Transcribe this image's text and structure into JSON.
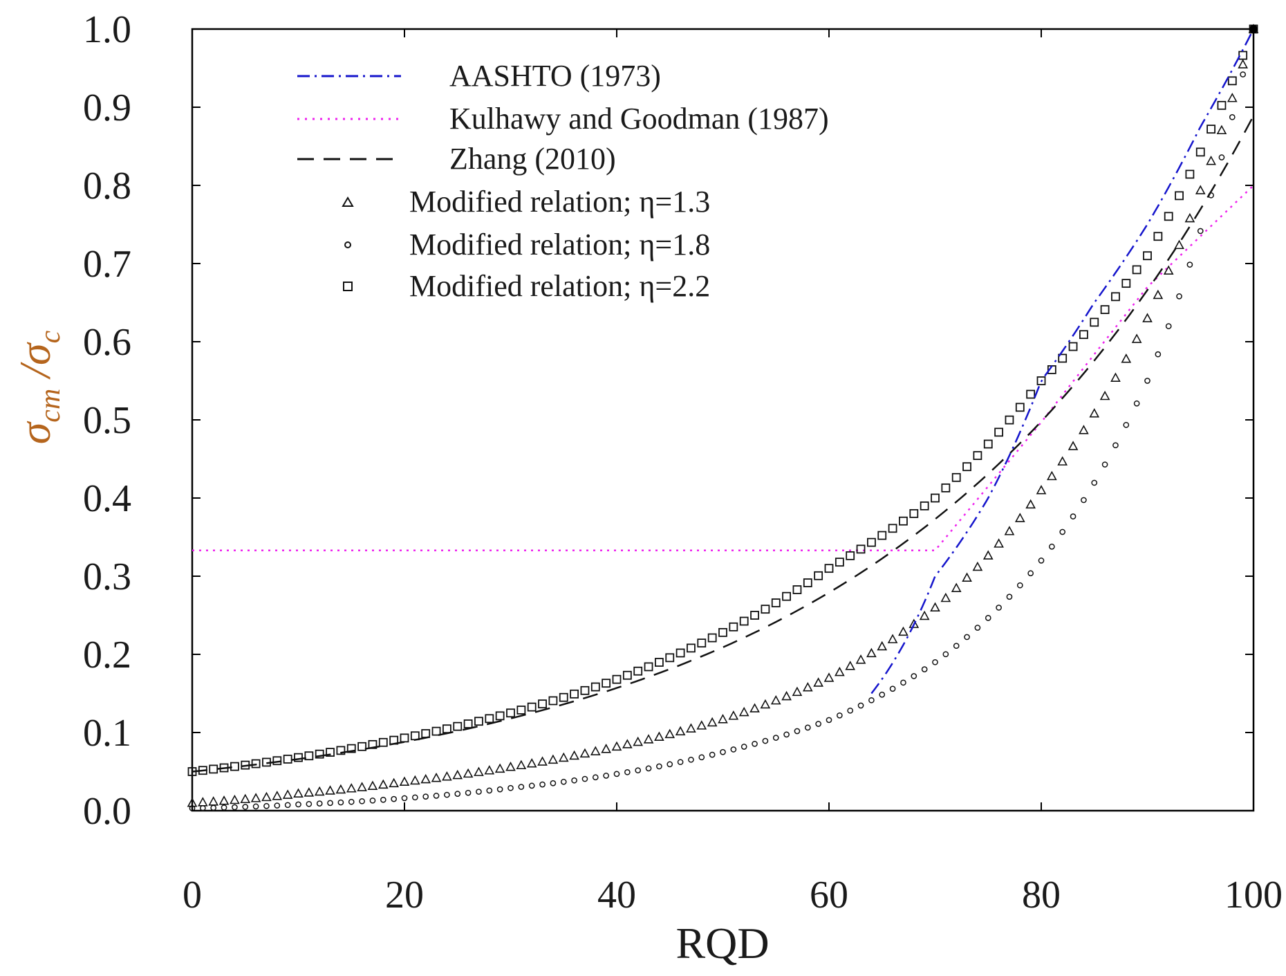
{
  "chart_data": {
    "type": "line",
    "title": "",
    "xlabel": "RQD",
    "ylabel": {
      "main": "σ",
      "sub1": "cm",
      "sep": " /σ",
      "sub2": "c"
    },
    "xlim": [
      0,
      100
    ],
    "ylim": [
      0.0,
      1.0
    ],
    "xticks": [
      "0",
      "20",
      "40",
      "60",
      "80",
      "100"
    ],
    "yticks": [
      "0.0",
      "0.1",
      "0.2",
      "0.3",
      "0.4",
      "0.5",
      "0.6",
      "0.7",
      "0.8",
      "0.9",
      "1.0"
    ],
    "grid": false,
    "legend_position": "top-left",
    "colors": {
      "aashto": "#1515cc",
      "kulhawy": "#ee22ee",
      "zhang": "#111111",
      "markers": "#111111",
      "ylabel": "#b5651d"
    },
    "series": [
      {
        "name": "AASHTO (1973)",
        "style": "dash-dot",
        "x": [
          64,
          70,
          75,
          80,
          85,
          90,
          95,
          100
        ],
        "y": [
          0.15,
          0.3,
          0.4,
          0.55,
          0.65,
          0.75,
          0.875,
          1.0
        ]
      },
      {
        "name": "Kulhawy and Goodman (1987)",
        "style": "dotted",
        "x": [
          0,
          70,
          75,
          80,
          85,
          90,
          95,
          100
        ],
        "y": [
          0.333,
          0.333,
          0.415,
          0.497,
          0.584,
          0.67,
          0.735,
          0.8
        ]
      },
      {
        "name": "Zhang (2010)",
        "style": "dashed",
        "x": [
          0,
          10,
          20,
          30,
          40,
          50,
          60,
          70,
          80,
          90,
          100
        ],
        "y": [
          0.05,
          0.066,
          0.088,
          0.118,
          0.157,
          0.209,
          0.279,
          0.373,
          0.498,
          0.666,
          0.889
        ]
      },
      {
        "name": "Modified relation; η=1.3",
        "style": "triangle-markers",
        "x": [
          0,
          10,
          20,
          30,
          40,
          50,
          60,
          70,
          80,
          90,
          100
        ],
        "y": [
          0.01,
          0.022,
          0.037,
          0.056,
          0.082,
          0.117,
          0.17,
          0.26,
          0.41,
          0.63,
          1.0
        ]
      },
      {
        "name": "Modified relation; η=1.8",
        "style": "circle-markers",
        "x": [
          0,
          10,
          20,
          30,
          40,
          50,
          60,
          70,
          80,
          90,
          100
        ],
        "y": [
          0.003,
          0.008,
          0.016,
          0.029,
          0.047,
          0.075,
          0.116,
          0.19,
          0.32,
          0.55,
          1.0
        ]
      },
      {
        "name": "Modified relation; η=2.2",
        "style": "square-markers",
        "x": [
          0,
          10,
          20,
          30,
          40,
          50,
          60,
          70,
          80,
          90,
          100
        ],
        "y": [
          0.05,
          0.068,
          0.093,
          0.125,
          0.168,
          0.228,
          0.31,
          0.4,
          0.55,
          0.71,
          1.0
        ]
      }
    ]
  }
}
